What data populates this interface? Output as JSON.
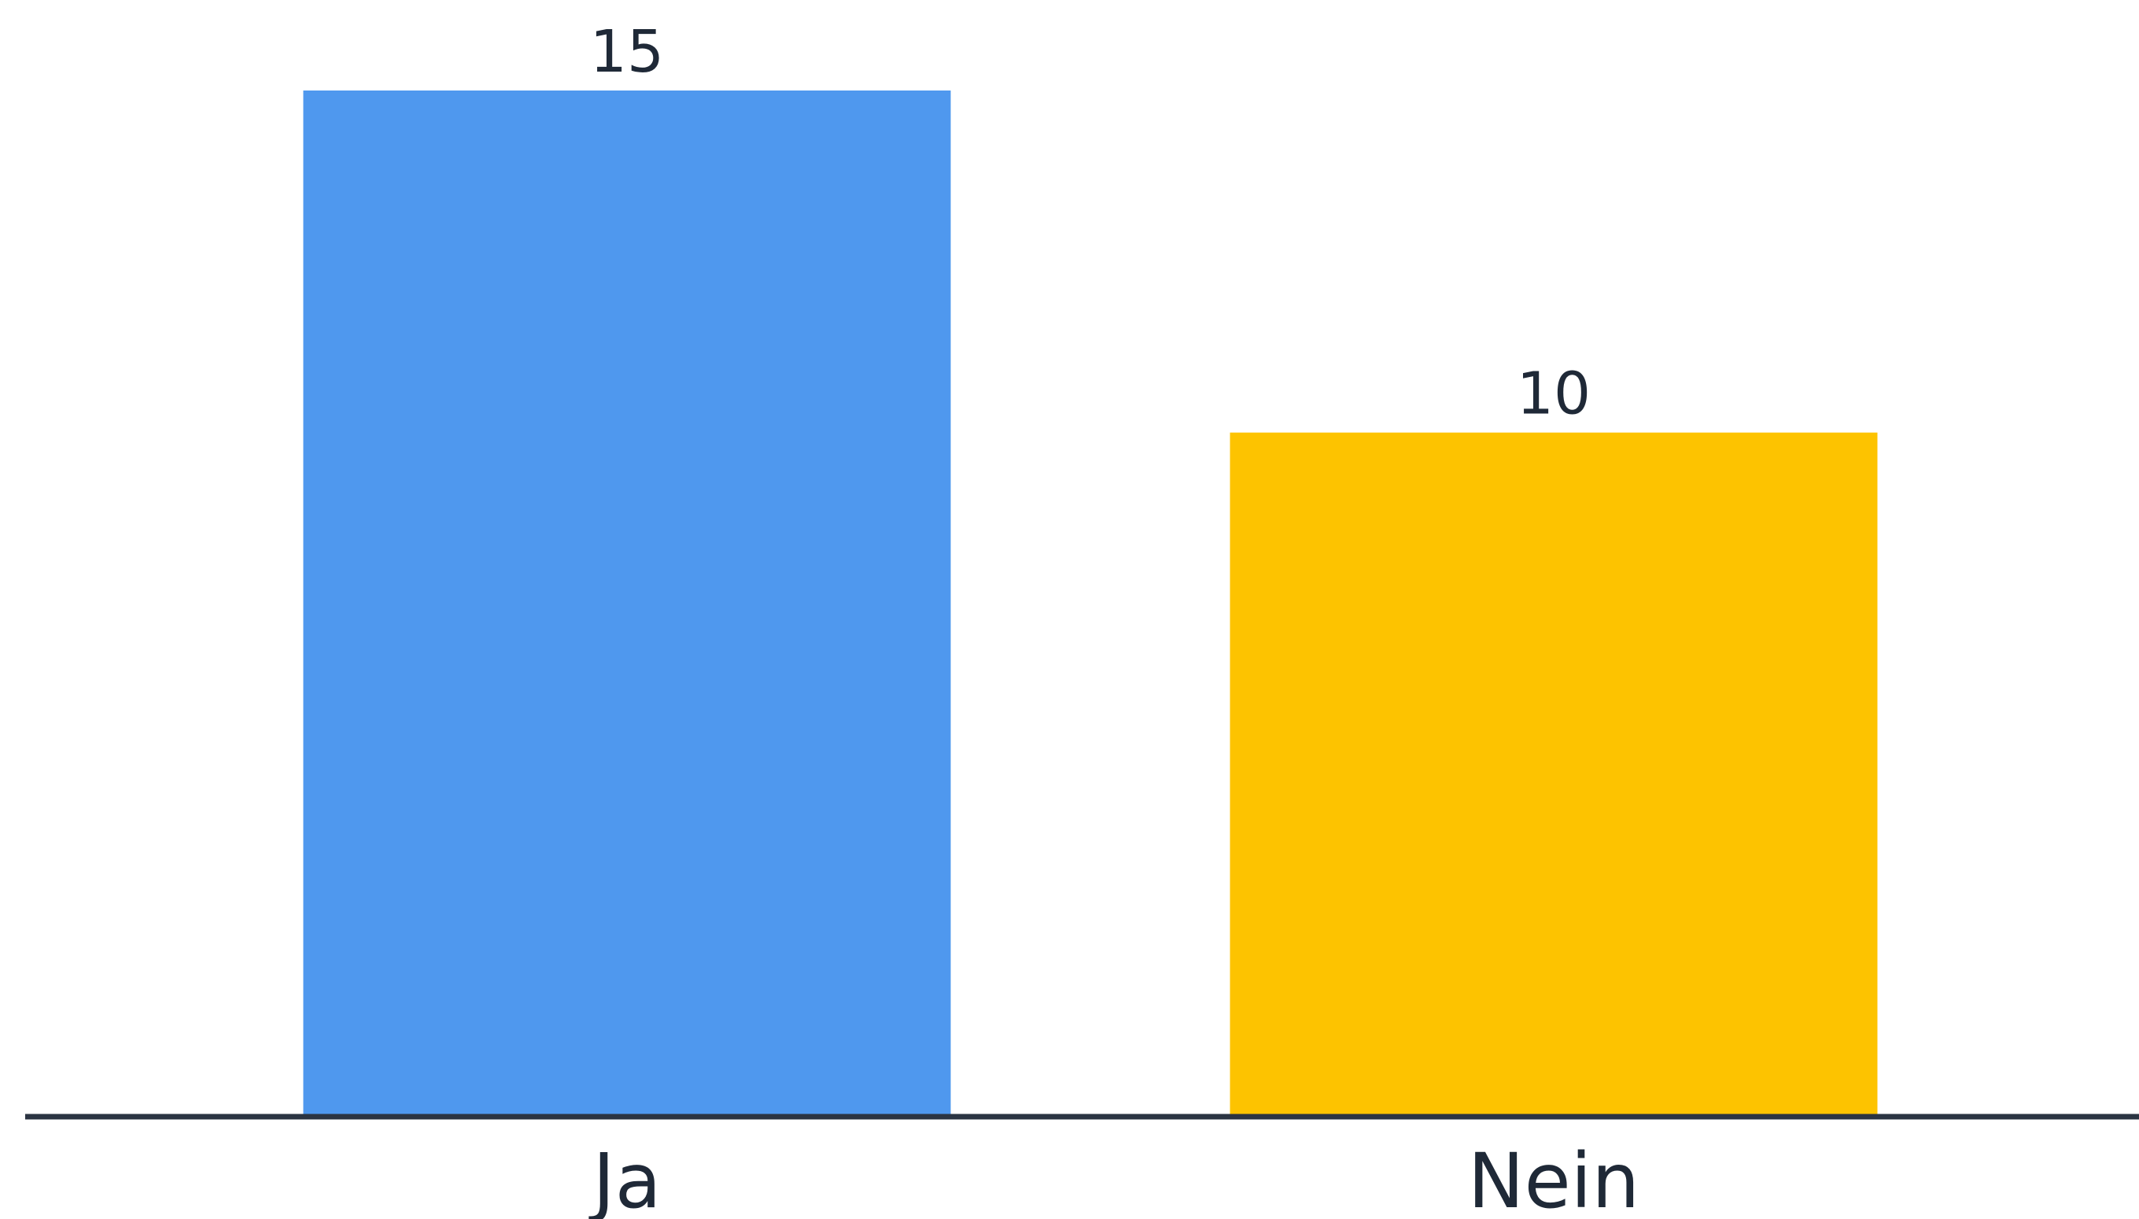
{
  "chart_data": {
    "type": "bar",
    "categories": [
      "Ja",
      "Nein"
    ],
    "values": [
      15,
      10
    ],
    "colors": [
      "#4f98ee",
      "#fdc300"
    ],
    "value_labels": [
      "15",
      "10"
    ],
    "ylim": [
      0,
      15
    ],
    "grid": false,
    "legend": "none",
    "axis_color": "#2b3442"
  }
}
